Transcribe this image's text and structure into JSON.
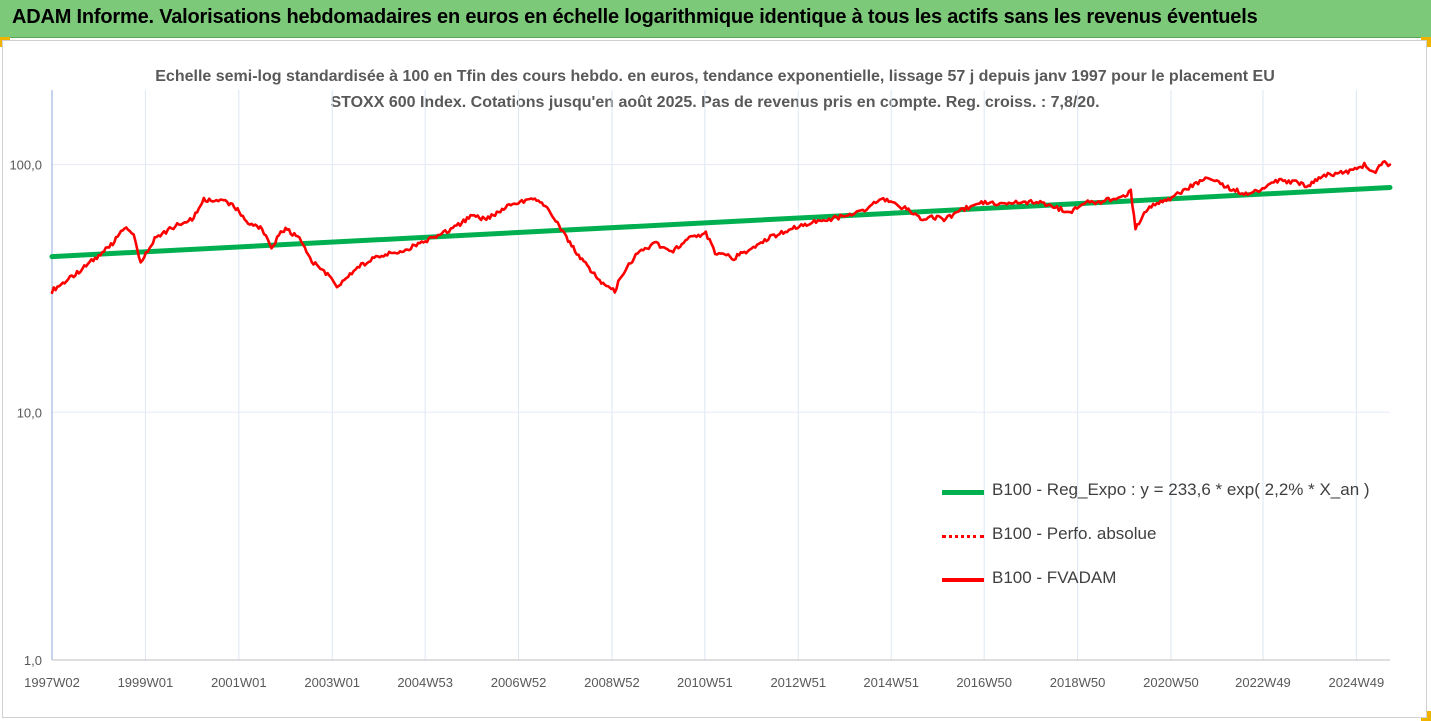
{
  "header": {
    "title": "ADAM Informe. Valorisations hebdomadaires en euros en échelle logarithmique identique à tous les actifs sans les revenus éventuels"
  },
  "chart_data": {
    "type": "line",
    "title": "Echelle semi-log standardisée à 100 en Tfin des cours hebdo. en euros, tendance exponentielle, lissage 57 j depuis janv 1997 pour le placement EU STOXX 600 Index. Cotations jusqu'en août 2025. Pas de revenus pris en compte. Reg. croiss. : 7,8/20.",
    "xlabel": "",
    "ylabel": "",
    "y_scale": "log",
    "ylim": [
      1,
      200
    ],
    "xlim": [
      1997.0,
      2025.65
    ],
    "y_ticks": [
      1,
      10,
      100
    ],
    "y_tick_labels": [
      "1,0",
      "10,0",
      "100,0"
    ],
    "x_ticks": [
      1997.0,
      1999.0,
      2001.0,
      2003.0,
      2004.99,
      2006.99,
      2008.99,
      2010.98,
      2012.98,
      2014.97,
      2016.96,
      2018.96,
      2020.96,
      2022.93,
      2024.93
    ],
    "x_tick_labels": [
      "1997W02",
      "1999W01",
      "2001W01",
      "2003W01",
      "2004W53",
      "2006W52",
      "2008W52",
      "2010W51",
      "2012W51",
      "2014W51",
      "2016W50",
      "2018W50",
      "2020W50",
      "2022W49",
      "2024W49"
    ],
    "grid": "vertical",
    "legend_position": "right-middle",
    "colors": {
      "trend": "#00b050",
      "perf": "#ff0000",
      "fvadam": "#ff0000",
      "grid": "#dde7f3",
      "axis": "#8eaadb"
    },
    "series": [
      {
        "name": "B100 - Reg_Expo : y = 233,6 * exp( 2,2% *  X_an )",
        "style": "solid-thick",
        "x": [
          1997.0,
          2025.65
        ],
        "values": [
          42.5,
          80.8
        ]
      },
      {
        "name": "B100 - Perfo. absolue",
        "style": "dotted",
        "x": [],
        "values": []
      },
      {
        "name": "B100 - FVADAM",
        "style": "solid",
        "x": [
          1997.0,
          1997.5,
          1998.0,
          1998.3,
          1998.55,
          1998.75,
          1998.9,
          1999.2,
          1999.6,
          2000.0,
          2000.25,
          2000.6,
          2000.9,
          2001.2,
          2001.5,
          2001.7,
          2001.9,
          2002.0,
          2002.3,
          2002.6,
          2002.9,
          2003.1,
          2003.5,
          2003.9,
          2004.3,
          2004.8,
          2005.3,
          2005.7,
          2006.0,
          2006.3,
          2006.6,
          2006.9,
          2007.3,
          2007.6,
          2007.9,
          2008.2,
          2008.5,
          2008.8,
          2009.05,
          2009.2,
          2009.5,
          2009.9,
          2010.3,
          2010.6,
          2011.0,
          2011.2,
          2011.6,
          2011.9,
          2012.3,
          2012.7,
          2013.2,
          2013.6,
          2014.0,
          2014.4,
          2014.8,
          2015.0,
          2015.3,
          2015.6,
          2015.8,
          2016.1,
          2016.5,
          2016.9,
          2017.3,
          2017.6,
          2018.0,
          2018.4,
          2018.8,
          2019.1,
          2019.5,
          2019.9,
          2020.1,
          2020.2,
          2020.5,
          2020.9,
          2021.3,
          2021.7,
          2021.9,
          2022.3,
          2022.6,
          2022.8,
          2023.2,
          2023.6,
          2023.9,
          2024.2,
          2024.6,
          2024.9,
          2025.1,
          2025.3,
          2025.5,
          2025.65
        ],
        "values": [
          31,
          36,
          43,
          48,
          56,
          52,
          40,
          50,
          56,
          60,
          72,
          72,
          68,
          58,
          55,
          46,
          53,
          55,
          50,
          40,
          36,
          32,
          38,
          42,
          44,
          47,
          52,
          57,
          62,
          60,
          65,
          70,
          73,
          68,
          55,
          45,
          38,
          33,
          31,
          36,
          43,
          48,
          45,
          50,
          53,
          44,
          42,
          45,
          50,
          54,
          58,
          60,
          62,
          66,
          73,
          70,
          66,
          60,
          62,
          60,
          66,
          70,
          69,
          70,
          71,
          68,
          64,
          70,
          71,
          74,
          78,
          55,
          68,
          72,
          80,
          87,
          86,
          79,
          76,
          78,
          86,
          85,
          82,
          90,
          93,
          95,
          100,
          92,
          102,
          100
        ]
      }
    ]
  },
  "legend": {
    "items": [
      {
        "label": "B100 - Reg_Expo : y = 233,6 * exp( 2,2% *  X_an )",
        "color": "#00b050",
        "style": "solid-thick"
      },
      {
        "label": "B100 - Perfo. absolue",
        "color": "#ff0000",
        "style": "dotted"
      },
      {
        "label": "B100 - FVADAM",
        "color": "#ff0000",
        "style": "solid"
      }
    ]
  }
}
